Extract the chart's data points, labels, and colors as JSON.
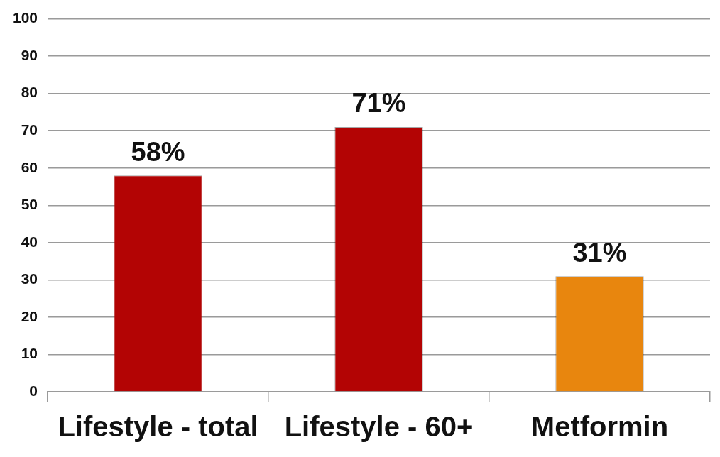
{
  "chart_data": {
    "type": "bar",
    "categories": [
      "Lifestyle - total",
      "Lifestyle - 60+",
      "Metformin"
    ],
    "values": [
      58,
      71,
      31
    ],
    "colors": [
      "#b30404",
      "#b30404",
      "#e8860e"
    ],
    "value_labels": [
      "58%",
      "71%",
      "31%"
    ],
    "ylim": [
      0,
      100
    ],
    "yticks": [
      0,
      10,
      20,
      30,
      40,
      50,
      60,
      70,
      80,
      90,
      100
    ],
    "grid": "y"
  }
}
